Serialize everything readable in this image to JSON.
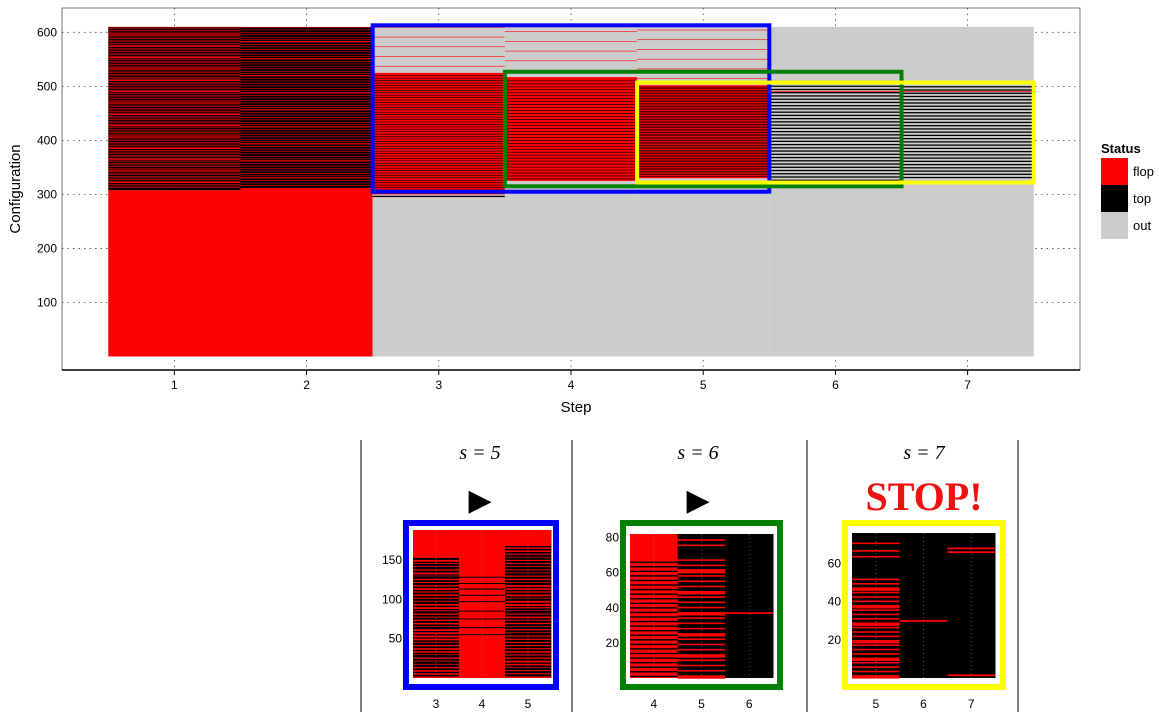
{
  "chart_data": [
    {
      "type": "heatmap",
      "title": "",
      "xlabel": "Step",
      "ylabel": "Configuration",
      "x_ticks": [
        1,
        2,
        3,
        4,
        5,
        6,
        7
      ],
      "y_ticks": [
        100,
        200,
        300,
        400,
        500,
        600
      ],
      "xlim": [
        0.15,
        7.85
      ],
      "ylim": [
        -25,
        645
      ],
      "grid": true,
      "legend": {
        "title": "Status",
        "position": "right",
        "entries": [
          {
            "label": "flop",
            "color": "#ff0000"
          },
          {
            "label": "top",
            "color": "#000000"
          },
          {
            "label": "out",
            "color": "#cccccc"
          }
        ]
      },
      "columns": [
        {
          "step": 1,
          "flop_below": 308,
          "top_range": [
            308,
            610
          ],
          "top_band_step": 9,
          "red_line_stride": 3,
          "status_above": "top"
        },
        {
          "step": 2,
          "flop_below": 312,
          "top_range": [
            312,
            610
          ],
          "top_band_step": 9,
          "red_line_stride": 2,
          "status_above": "top"
        },
        {
          "step": 3,
          "flop_range": [
            300,
            525
          ],
          "out_range": [
            525,
            610
          ],
          "black_line_step": 9,
          "status_above": "out"
        },
        {
          "step": 4,
          "flop_range": [
            325,
            517
          ],
          "out_range": [
            517,
            610
          ],
          "black_line_step": 11,
          "status_above": "out"
        },
        {
          "step": 5,
          "flop_range": [
            330,
            502
          ],
          "out_range": [
            502,
            610
          ],
          "black_line_step": 6,
          "status_above": "out"
        },
        {
          "step": 6,
          "top_lines_range": [
            325,
            505
          ],
          "line_step": 6,
          "status_above": "out"
        },
        {
          "step": 7,
          "top_lines_range": [
            330,
            500
          ],
          "line_step": 6,
          "status_above": "out"
        }
      ],
      "highlight_boxes": [
        {
          "color": "#0000ff",
          "x_range": [
            2.5,
            5.5
          ],
          "y_range": [
            305,
            613
          ]
        },
        {
          "color": "#008000",
          "x_range": [
            3.5,
            6.5
          ],
          "y_range": [
            315,
            527
          ]
        },
        {
          "color": "#ffff00",
          "x_range": [
            4.5,
            7.5
          ],
          "y_range": [
            322,
            507
          ]
        }
      ]
    },
    {
      "type": "heatmap",
      "title": "s = 5",
      "marker": "▶",
      "frame_color": "#0000ff",
      "x_ticks": [
        3,
        4,
        5
      ],
      "y_ticks": [
        50,
        100,
        150
      ],
      "y_max": 188,
      "columns": [
        {
          "step": 3,
          "base": "red",
          "top_fill_from": 152,
          "black_line_step": 4,
          "black_line_height": 2
        },
        {
          "step": 4,
          "base": "red",
          "sparse_black_lines": [
            55,
            64,
            75,
            85,
            97,
            105,
            113,
            120,
            128
          ]
        },
        {
          "step": 5,
          "base": "red",
          "top_fill_from": 168,
          "black_line_step": 4,
          "black_line_height": 2
        }
      ]
    },
    {
      "type": "heatmap",
      "title": "s = 6",
      "marker": "▶",
      "frame_color": "#008000",
      "x_ticks": [
        4,
        5,
        6
      ],
      "y_ticks": [
        20,
        40,
        60,
        80
      ],
      "y_max": 82,
      "columns": [
        {
          "step": 4,
          "base": "red",
          "black_lines_from": 0,
          "black_lines_to": 68,
          "line_step": 2.6,
          "line_height": 0.8
        },
        {
          "step": 5,
          "base": "black",
          "red_lines_to": 68,
          "line_step": 3,
          "line_height": 1.8
        },
        {
          "step": 6,
          "base": "black",
          "red_lines": [
            37
          ]
        }
      ]
    },
    {
      "type": "heatmap",
      "title": "s = 7",
      "banner": "STOP!",
      "banner_color": "#ee1111",
      "frame_color": "#ffff00",
      "x_ticks": [
        5,
        6,
        7
      ],
      "y_ticks": [
        20,
        40,
        60
      ],
      "y_max": 76,
      "columns": [
        {
          "step": 5,
          "base": "black",
          "red_lines_to": 52,
          "line_step": 2.3,
          "line_height": 1.1
        },
        {
          "step": 6,
          "base": "black",
          "red_lines": [
            30
          ]
        },
        {
          "step": 7,
          "base": "black",
          "red_lines": [
            1.5,
            66,
            68
          ]
        }
      ]
    }
  ]
}
